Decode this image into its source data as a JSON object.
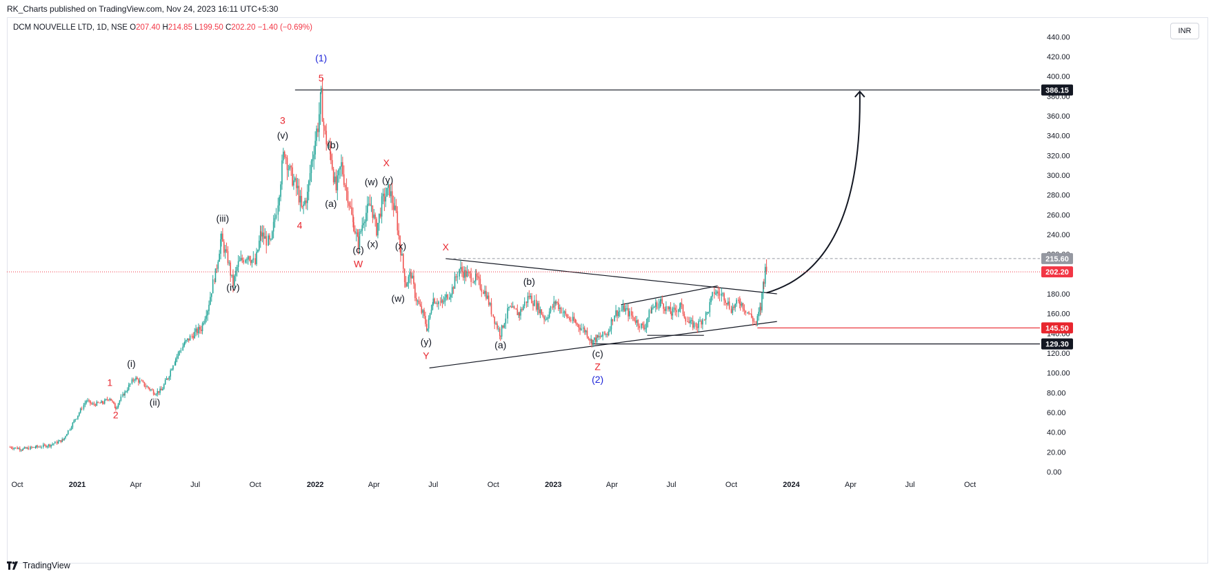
{
  "header": {
    "publisher": "RK_Charts published on TradingView.com, Nov 24, 2023 16:11 UTC+5:30",
    "symbol": "DCM NOUVELLE LTD, 1D, NSE",
    "open_label": "O",
    "open": "207.40",
    "high_label": "H",
    "high": "214.85",
    "low_label": "L",
    "low": "199.50",
    "close_label": "C",
    "close": "202.20",
    "change": "−1.40 (−0.69%)",
    "currency": "INR"
  },
  "footer": {
    "brand": "TradingView"
  },
  "colors": {
    "up": "#26a69a",
    "down": "#ef5350",
    "red_label": "#e8262e",
    "blue_label": "#1d24d8",
    "black": "#131722"
  },
  "chart_data": {
    "type": "candlestick",
    "ylim": [
      0,
      440
    ],
    "y_ticks": [
      "0.00",
      "20.00",
      "40.00",
      "60.00",
      "80.00",
      "100.00",
      "120.00",
      "140.00",
      "160.00",
      "180.00",
      "200.00",
      "220.00",
      "240.00",
      "260.00",
      "280.00",
      "300.00",
      "320.00",
      "340.00",
      "360.00",
      "380.00",
      "400.00",
      "420.00",
      "440.00"
    ],
    "x_ticks": [
      {
        "label": "Oct",
        "date": "2020-10-01",
        "bold": false
      },
      {
        "label": "2021",
        "date": "2021-01-01",
        "bold": true
      },
      {
        "label": "Apr",
        "date": "2021-04-01",
        "bold": false
      },
      {
        "label": "Jul",
        "date": "2021-07-01",
        "bold": false
      },
      {
        "label": "Oct",
        "date": "2021-10-01",
        "bold": false
      },
      {
        "label": "2022",
        "date": "2022-01-01",
        "bold": true
      },
      {
        "label": "Apr",
        "date": "2022-04-01",
        "bold": false
      },
      {
        "label": "Jul",
        "date": "2022-07-01",
        "bold": false
      },
      {
        "label": "Oct",
        "date": "2022-10-01",
        "bold": false
      },
      {
        "label": "2023",
        "date": "2023-01-01",
        "bold": true
      },
      {
        "label": "Apr",
        "date": "2023-04-01",
        "bold": false
      },
      {
        "label": "Jul",
        "date": "2023-07-01",
        "bold": false
      },
      {
        "label": "Oct",
        "date": "2023-10-01",
        "bold": false
      },
      {
        "label": "2024",
        "date": "2024-01-01",
        "bold": true
      },
      {
        "label": "Apr",
        "date": "2024-04-01",
        "bold": false
      },
      {
        "label": "Jul",
        "date": "2024-07-01",
        "bold": false
      },
      {
        "label": "Oct",
        "date": "2024-10-01",
        "bold": false
      }
    ],
    "price_path": [
      [
        "2020-09-20",
        25
      ],
      [
        "2020-10-10",
        23
      ],
      [
        "2020-10-30",
        25
      ],
      [
        "2020-11-20",
        27
      ],
      [
        "2020-12-10",
        32
      ],
      [
        "2020-12-31",
        55
      ],
      [
        "2021-01-15",
        72
      ],
      [
        "2021-01-25",
        68
      ],
      [
        "2021-02-10",
        70
      ],
      [
        "2021-02-20",
        75
      ],
      [
        "2021-03-01",
        65
      ],
      [
        "2021-03-15",
        80
      ],
      [
        "2021-03-30",
        95
      ],
      [
        "2021-04-10",
        90
      ],
      [
        "2021-04-20",
        85
      ],
      [
        "2021-04-30",
        80
      ],
      [
        "2021-05-10",
        82
      ],
      [
        "2021-05-20",
        95
      ],
      [
        "2021-06-01",
        115
      ],
      [
        "2021-06-15",
        130
      ],
      [
        "2021-06-30",
        140
      ],
      [
        "2021-07-10",
        145
      ],
      [
        "2021-07-20",
        165
      ],
      [
        "2021-08-01",
        200
      ],
      [
        "2021-08-10",
        235
      ],
      [
        "2021-08-20",
        215
      ],
      [
        "2021-08-28",
        190
      ],
      [
        "2021-09-05",
        210
      ],
      [
        "2021-09-20",
        220
      ],
      [
        "2021-10-01",
        210
      ],
      [
        "2021-10-10",
        240
      ],
      [
        "2021-10-25",
        230
      ],
      [
        "2021-11-05",
        275
      ],
      [
        "2021-11-15",
        325
      ],
      [
        "2021-11-25",
        300
      ],
      [
        "2021-12-05",
        285
      ],
      [
        "2021-12-12",
        265
      ],
      [
        "2021-12-20",
        280
      ],
      [
        "2021-12-28",
        320
      ],
      [
        "2022-01-05",
        350
      ],
      [
        "2022-01-10",
        378
      ],
      [
        "2022-01-16",
        340
      ],
      [
        "2022-01-25",
        320
      ],
      [
        "2022-02-02",
        285
      ],
      [
        "2022-02-10",
        310
      ],
      [
        "2022-02-20",
        280
      ],
      [
        "2022-03-01",
        250
      ],
      [
        "2022-03-08",
        232
      ],
      [
        "2022-03-18",
        260
      ],
      [
        "2022-03-28",
        270
      ],
      [
        "2022-04-05",
        245
      ],
      [
        "2022-04-15",
        275
      ],
      [
        "2022-04-25",
        285
      ],
      [
        "2022-05-05",
        260
      ],
      [
        "2022-05-12",
        225
      ],
      [
        "2022-05-20",
        190
      ],
      [
        "2022-05-28",
        200
      ],
      [
        "2022-06-05",
        175
      ],
      [
        "2022-06-15",
        160
      ],
      [
        "2022-06-22",
        145
      ],
      [
        "2022-07-01",
        175
      ],
      [
        "2022-07-15",
        170
      ],
      [
        "2022-07-30",
        185
      ],
      [
        "2022-08-10",
        205
      ],
      [
        "2022-08-20",
        200
      ],
      [
        "2022-09-05",
        195
      ],
      [
        "2022-09-20",
        180
      ],
      [
        "2022-10-05",
        150
      ],
      [
        "2022-10-12",
        140
      ],
      [
        "2022-10-25",
        165
      ],
      [
        "2022-11-10",
        160
      ],
      [
        "2022-11-25",
        178
      ],
      [
        "2022-12-10",
        165
      ],
      [
        "2022-12-20",
        155
      ],
      [
        "2023-01-05",
        172
      ],
      [
        "2023-01-20",
        158
      ],
      [
        "2023-02-05",
        150
      ],
      [
        "2023-02-20",
        142
      ],
      [
        "2023-03-01",
        132
      ],
      [
        "2023-03-10",
        135
      ],
      [
        "2023-03-25",
        140
      ],
      [
        "2023-04-05",
        160
      ],
      [
        "2023-04-20",
        165
      ],
      [
        "2023-05-05",
        155
      ],
      [
        "2023-05-20",
        145
      ],
      [
        "2023-06-01",
        165
      ],
      [
        "2023-06-15",
        172
      ],
      [
        "2023-07-01",
        160
      ],
      [
        "2023-07-15",
        168
      ],
      [
        "2023-07-28",
        150
      ],
      [
        "2023-08-10",
        148
      ],
      [
        "2023-08-25",
        160
      ],
      [
        "2023-09-05",
        182
      ],
      [
        "2023-09-20",
        178
      ],
      [
        "2023-10-01",
        165
      ],
      [
        "2023-10-15",
        172
      ],
      [
        "2023-10-28",
        160
      ],
      [
        "2023-11-08",
        150
      ],
      [
        "2023-11-15",
        165
      ],
      [
        "2023-11-20",
        195
      ],
      [
        "2023-11-24",
        212
      ]
    ],
    "horizontal_levels": [
      {
        "price": 386.15,
        "label": "386.15",
        "color": "#131722",
        "from": "2021-12-01",
        "to_axis": true
      },
      {
        "price": 145.5,
        "label": "145.50",
        "color": "#e8262e",
        "from": "2023-11-10",
        "to_axis": true
      },
      {
        "price": 129.3,
        "label": "129.30",
        "color": "#131722",
        "from": "2023-03-01",
        "to_axis": true
      }
    ],
    "price_tags": [
      {
        "price": 215.6,
        "label": "215.60",
        "color": "#9598a1",
        "dashed_from": "2022-08-01"
      },
      {
        "price": 202.2,
        "label": "202.20",
        "color": "#f23645",
        "dotted_from": "2020-09-20"
      }
    ],
    "trendlines": [
      {
        "from": [
          "2022-07-20",
          215.6
        ],
        "to": [
          "2023-12-10",
          180
        ]
      },
      {
        "from": [
          "2022-06-25",
          105
        ],
        "to": [
          "2023-12-10",
          152
        ]
      },
      {
        "from": [
          "2023-04-15",
          169
        ],
        "to": [
          "2023-09-10",
          188
        ]
      },
      {
        "from": [
          "2023-05-25",
          138
        ],
        "to": [
          "2023-08-20",
          138
        ]
      }
    ],
    "projection_arrow": {
      "from": [
        "2023-11-24",
        181
      ],
      "to": [
        "2024-04-15",
        386
      ]
    },
    "wave_labels": [
      {
        "text": "(1)",
        "date": "2022-01-10",
        "price": 415,
        "color": "blue",
        "size": 16
      },
      {
        "text": "5",
        "date": "2022-01-10",
        "price": 395,
        "color": "red",
        "size": 16
      },
      {
        "text": "3",
        "date": "2021-11-12",
        "price": 352,
        "color": "red",
        "size": 16
      },
      {
        "text": "(v)",
        "date": "2021-11-12",
        "price": 337,
        "color": "black",
        "size": 14
      },
      {
        "text": "(b)",
        "date": "2022-01-28",
        "price": 327,
        "color": "black",
        "size": 14
      },
      {
        "text": "4",
        "date": "2021-12-08",
        "price": 246,
        "color": "red",
        "size": 16
      },
      {
        "text": "(a)",
        "date": "2022-01-25",
        "price": 268,
        "color": "black",
        "size": 14
      },
      {
        "text": "X",
        "date": "2022-04-20",
        "price": 309,
        "color": "red",
        "size": 16
      },
      {
        "text": "(w)",
        "date": "2022-03-28",
        "price": 290,
        "color": "black",
        "size": 14
      },
      {
        "text": "(y)",
        "date": "2022-04-22",
        "price": 292,
        "color": "black",
        "size": 14
      },
      {
        "text": "(c)",
        "date": "2022-03-08",
        "price": 221,
        "color": "black",
        "size": 14
      },
      {
        "text": "W",
        "date": "2022-03-08",
        "price": 207,
        "color": "red",
        "size": 16
      },
      {
        "text": "(x)",
        "date": "2022-03-30",
        "price": 227,
        "color": "black",
        "size": 14
      },
      {
        "text": "(x)",
        "date": "2022-05-12",
        "price": 225,
        "color": "black",
        "size": 14
      },
      {
        "text": "(w)",
        "date": "2022-05-08",
        "price": 172,
        "color": "black",
        "size": 14
      },
      {
        "text": "(y)",
        "date": "2022-06-20",
        "price": 128,
        "color": "black",
        "size": 14
      },
      {
        "text": "Y",
        "date": "2022-06-20",
        "price": 114,
        "color": "red",
        "size": 16
      },
      {
        "text": "X",
        "date": "2022-07-20",
        "price": 224,
        "color": "red",
        "size": 16
      },
      {
        "text": "(b)",
        "date": "2022-11-25",
        "price": 189,
        "color": "black",
        "size": 14
      },
      {
        "text": "(a)",
        "date": "2022-10-12",
        "price": 125,
        "color": "black",
        "size": 14
      },
      {
        "text": "(c)",
        "date": "2023-03-10",
        "price": 116,
        "color": "black",
        "size": 14
      },
      {
        "text": "Z",
        "date": "2023-03-10",
        "price": 103,
        "color": "red",
        "size": 16
      },
      {
        "text": "(2)",
        "date": "2023-03-10",
        "price": 90,
        "color": "blue",
        "size": 16
      },
      {
        "text": "(iii)",
        "date": "2021-08-12",
        "price": 253,
        "color": "black",
        "size": 14
      },
      {
        "text": "(iv)",
        "date": "2021-08-28",
        "price": 183,
        "color": "black",
        "size": 14
      },
      {
        "text": "(i)",
        "date": "2021-03-25",
        "price": 106,
        "color": "black",
        "size": 14
      },
      {
        "text": "(ii)",
        "date": "2021-04-30",
        "price": 67,
        "color": "black",
        "size": 14
      },
      {
        "text": "1",
        "date": "2021-02-20",
        "price": 87,
        "color": "red",
        "size": 16
      },
      {
        "text": "2",
        "date": "2021-03-01",
        "price": 54,
        "color": "red",
        "size": 16
      }
    ]
  }
}
